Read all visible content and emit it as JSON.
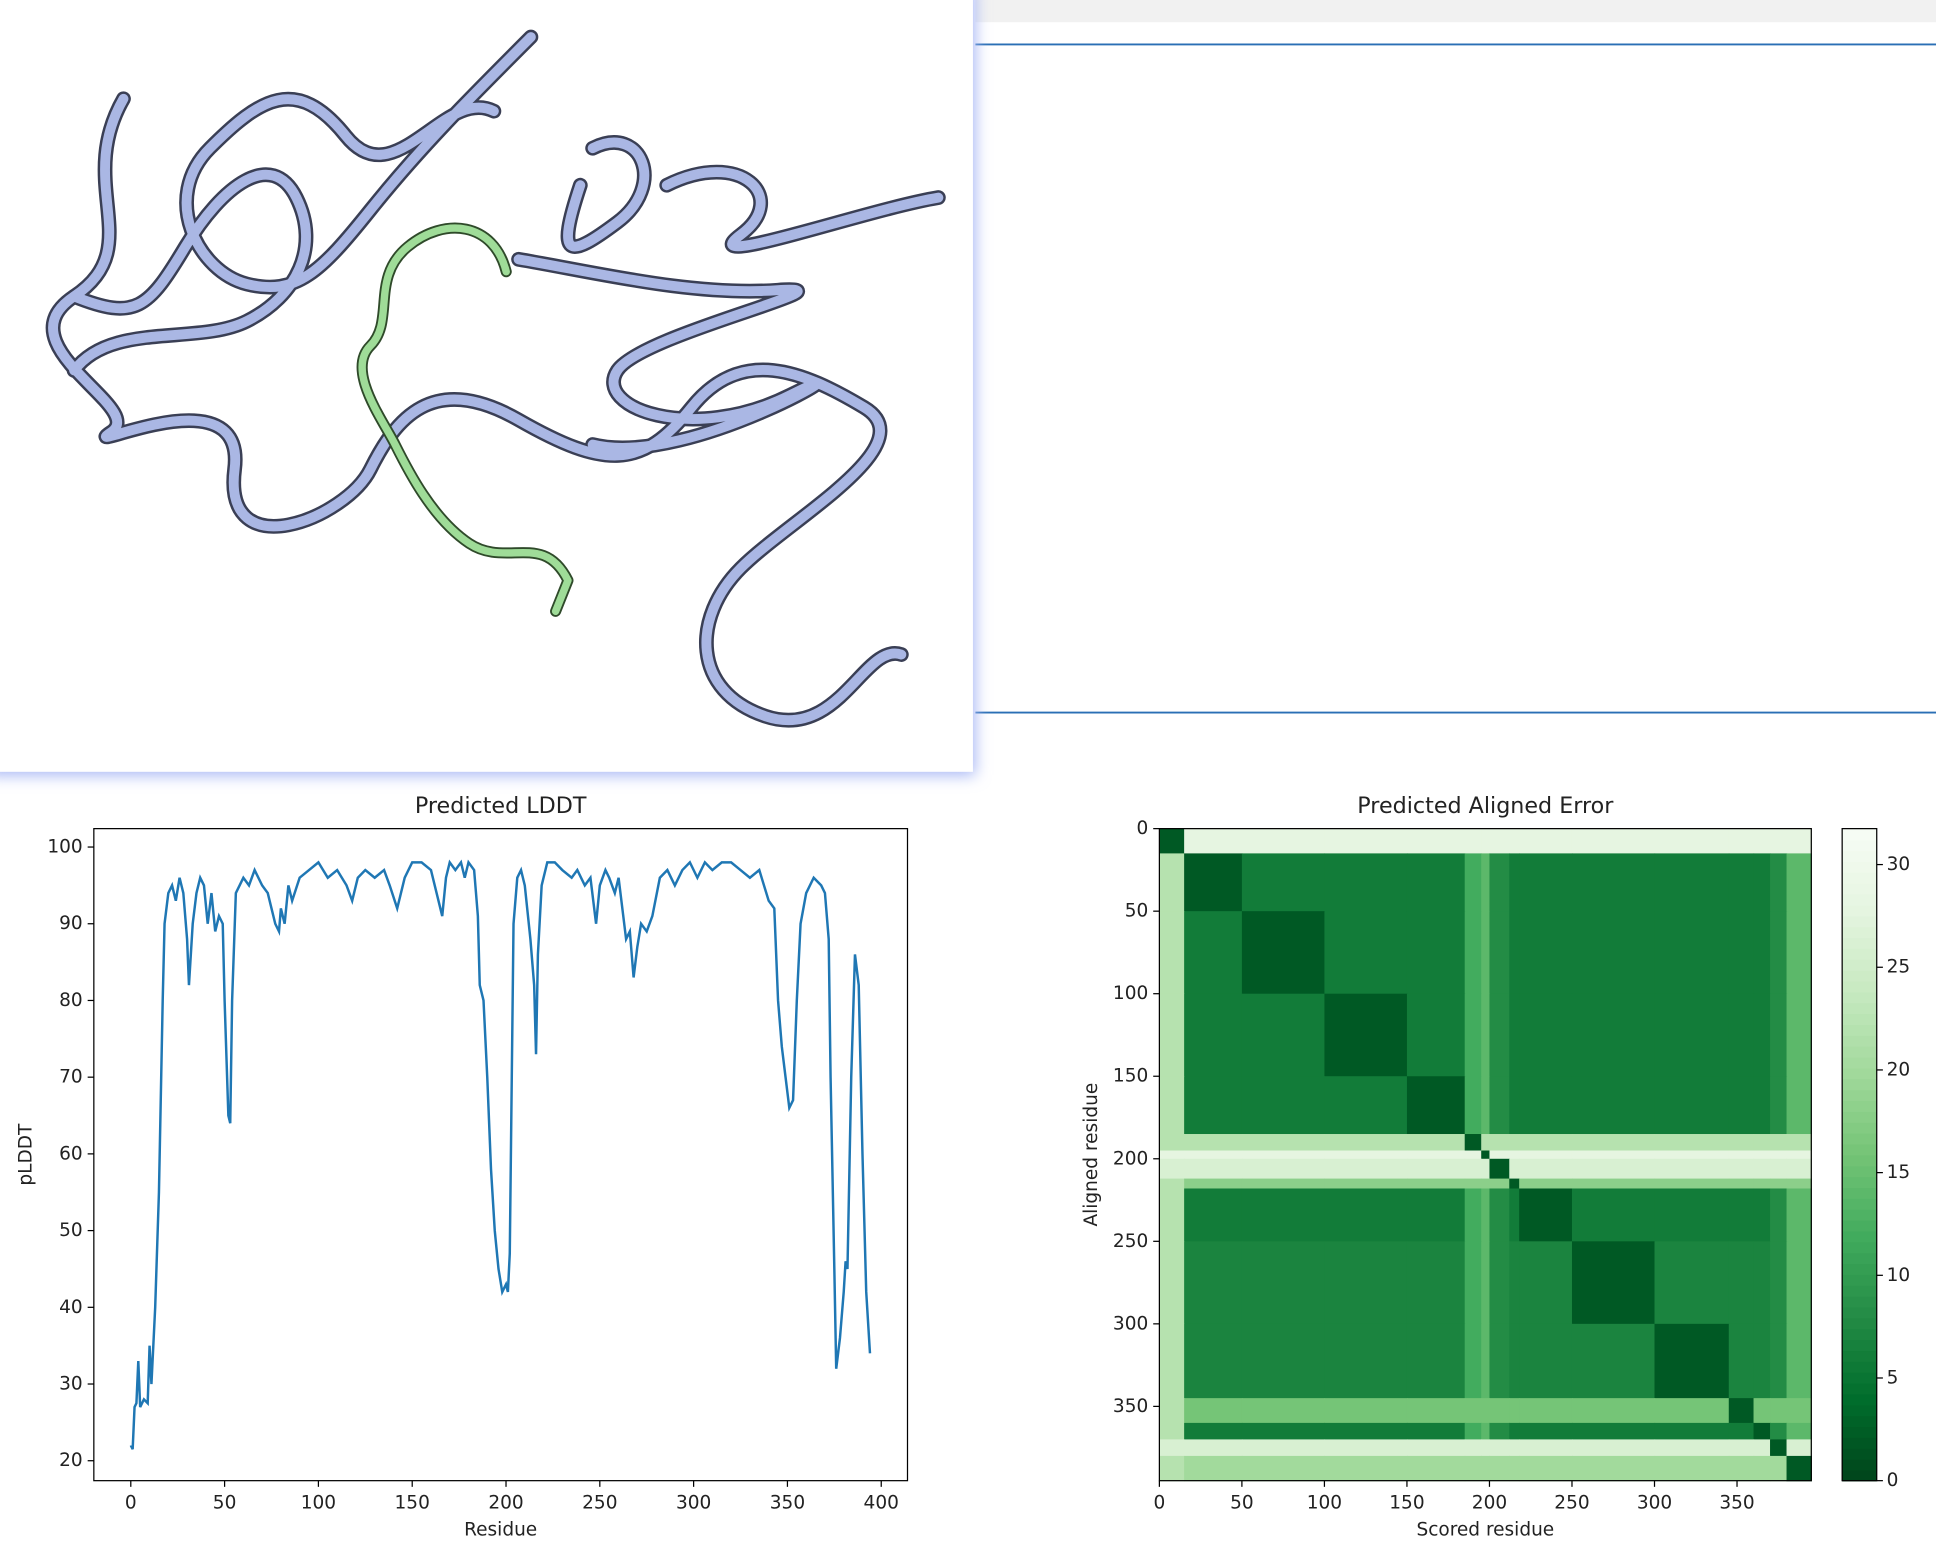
{
  "chart_data": [
    {
      "type": "line",
      "title": "Predicted LDDT",
      "xlabel": "Residue",
      "ylabel": "pLDDT",
      "color": "#1f77b4",
      "xlim": [
        -19.7,
        414
      ],
      "ylim": [
        17.4,
        102.4
      ],
      "xticks": [
        0,
        50,
        100,
        150,
        200,
        250,
        300,
        350,
        400
      ],
      "yticks": [
        20,
        30,
        40,
        50,
        60,
        70,
        80,
        90,
        100
      ],
      "grid": false,
      "x": [
        0,
        1,
        2,
        3,
        4,
        5,
        7,
        9,
        10,
        11,
        13,
        15,
        17,
        18,
        20,
        22,
        24,
        26,
        28,
        30,
        31,
        33,
        35,
        37,
        39,
        41,
        43,
        45,
        47,
        49,
        50,
        52,
        53,
        54,
        56,
        58,
        60,
        63,
        66,
        70,
        73,
        75,
        77,
        79,
        80,
        82,
        84,
        86,
        90,
        95,
        100,
        105,
        110,
        115,
        118,
        121,
        125,
        130,
        135,
        138,
        142,
        146,
        150,
        155,
        160,
        163,
        166,
        168,
        170,
        173,
        176,
        178,
        180,
        183,
        185,
        186,
        188,
        190,
        192,
        194,
        196,
        198,
        200,
        201,
        202,
        204,
        206,
        208,
        210,
        213,
        215,
        216,
        217,
        219,
        222,
        226,
        230,
        235,
        238,
        242,
        245,
        248,
        250,
        253,
        255,
        258,
        260,
        262,
        264,
        266,
        268,
        270,
        272,
        275,
        278,
        282,
        286,
        290,
        294,
        298,
        302,
        306,
        310,
        315,
        320,
        325,
        330,
        335,
        340,
        343,
        345,
        347,
        349,
        351,
        353,
        355,
        357,
        360,
        364,
        368,
        370,
        372,
        373,
        375,
        376,
        378,
        380,
        381,
        382,
        384,
        386,
        388,
        390,
        392,
        394
      ],
      "values": [
        22,
        21.5,
        27,
        27.5,
        33,
        27,
        28,
        27.5,
        35,
        30,
        40,
        55,
        80,
        90,
        94,
        95,
        93,
        96,
        94,
        88,
        82,
        90,
        94,
        96,
        95,
        90,
        94,
        89,
        91,
        90,
        80,
        65,
        64,
        80,
        94,
        95,
        96,
        95,
        97,
        95,
        94,
        92,
        90,
        89,
        92,
        90,
        95,
        93,
        96,
        97,
        98,
        96,
        97,
        95,
        93,
        96,
        97,
        96,
        97,
        95,
        92,
        96,
        98,
        98,
        97,
        94,
        91,
        96,
        98,
        97,
        98,
        96,
        98,
        97,
        91,
        82,
        80,
        70,
        58,
        50,
        45,
        42,
        43,
        42,
        47,
        90,
        96,
        97,
        95,
        88,
        82,
        73,
        86,
        95,
        98,
        98,
        97,
        96,
        97,
        95,
        96,
        90,
        95,
        97,
        96,
        94,
        96,
        92,
        88,
        89,
        83,
        87,
        90,
        89,
        91,
        96,
        97,
        95,
        97,
        98,
        96,
        98,
        97,
        98,
        98,
        97,
        96,
        97,
        93,
        92,
        80,
        74,
        70,
        66,
        67,
        80,
        90,
        94,
        96,
        95,
        94,
        88,
        70,
        45,
        32,
        36,
        42,
        46,
        45,
        70,
        86,
        82,
        60,
        42,
        34
      ]
    },
    {
      "type": "heatmap",
      "title": "Predicted Aligned Error",
      "xlabel": "Scored residue",
      "ylabel": "Aligned residue",
      "colormap": "Greens_r",
      "clim": [
        0,
        31.75
      ],
      "cticks": [
        0,
        5,
        10,
        15,
        20,
        25,
        30
      ],
      "xlim": [
        0,
        395
      ],
      "ylim": [
        395,
        0
      ],
      "xticks": [
        0,
        50,
        100,
        150,
        200,
        250,
        300,
        350
      ],
      "yticks": [
        0,
        50,
        100,
        150,
        200,
        250,
        300,
        350
      ],
      "x_edges": [
        0,
        15,
        50,
        100,
        150,
        185,
        195,
        200,
        212,
        218,
        250,
        300,
        345,
        360,
        370,
        380,
        395
      ],
      "y_edges": [
        0,
        15,
        50,
        100,
        150,
        185,
        195,
        200,
        212,
        218,
        250,
        300,
        345,
        360,
        370,
        380,
        395
      ],
      "values": [
        [
          2,
          28,
          28,
          28,
          28,
          28,
          28,
          28,
          28,
          28,
          28,
          28,
          28,
          28,
          28,
          28
        ],
        [
          22,
          2,
          6,
          6,
          6,
          12,
          14,
          8,
          6,
          6,
          6,
          6,
          6,
          6,
          8,
          14
        ],
        [
          22,
          6,
          2,
          6,
          6,
          12,
          14,
          8,
          6,
          6,
          6,
          6,
          6,
          6,
          8,
          14
        ],
        [
          22,
          6,
          6,
          2,
          6,
          12,
          14,
          8,
          6,
          6,
          6,
          6,
          6,
          6,
          8,
          14
        ],
        [
          22,
          6,
          6,
          6,
          2,
          12,
          14,
          8,
          6,
          6,
          6,
          6,
          6,
          6,
          8,
          14
        ],
        [
          22,
          22,
          22,
          22,
          22,
          2,
          22,
          22,
          22,
          22,
          22,
          22,
          22,
          22,
          22,
          22
        ],
        [
          28,
          28,
          28,
          28,
          28,
          28,
          2,
          28,
          28,
          28,
          28,
          28,
          28,
          28,
          28,
          28
        ],
        [
          26,
          26,
          26,
          26,
          26,
          26,
          26,
          2,
          26,
          26,
          26,
          26,
          26,
          26,
          26,
          26
        ],
        [
          22,
          18,
          18,
          18,
          18,
          18,
          18,
          18,
          2,
          18,
          18,
          18,
          18,
          18,
          18,
          18
        ],
        [
          22,
          6,
          6,
          6,
          6,
          12,
          14,
          8,
          6,
          2,
          6,
          6,
          6,
          6,
          8,
          14
        ],
        [
          22,
          7,
          7,
          7,
          7,
          12,
          14,
          8,
          7,
          7,
          2,
          7,
          7,
          7,
          8,
          14
        ],
        [
          22,
          7,
          7,
          7,
          7,
          12,
          14,
          8,
          7,
          7,
          7,
          2,
          7,
          7,
          8,
          14
        ],
        [
          22,
          16,
          16,
          16,
          16,
          16,
          16,
          16,
          16,
          16,
          16,
          16,
          2,
          16,
          16,
          16
        ],
        [
          22,
          6,
          6,
          6,
          6,
          12,
          14,
          8,
          6,
          6,
          6,
          6,
          6,
          2,
          8,
          14
        ],
        [
          26,
          26,
          26,
          26,
          26,
          26,
          26,
          26,
          26,
          26,
          26,
          26,
          26,
          26,
          2,
          26
        ],
        [
          22,
          20,
          20,
          20,
          20,
          20,
          20,
          20,
          20,
          20,
          20,
          20,
          20,
          20,
          20,
          2
        ]
      ]
    }
  ]
}
